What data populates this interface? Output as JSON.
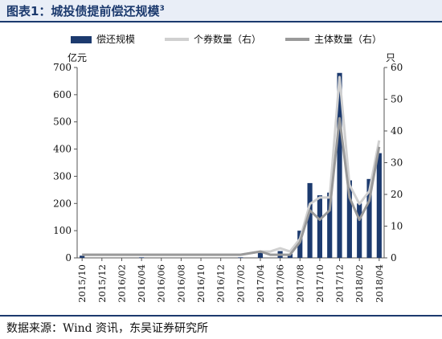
{
  "header": {
    "title": "图表1：城投债提前偿还规模",
    "title_superscript": "3"
  },
  "footer": {
    "source": "数据来源：Wind 资讯，东吴证券研究所"
  },
  "chart_data": {
    "type": "bar",
    "categories": [
      "2015/10",
      "2015/11",
      "2015/12",
      "2016/01",
      "2016/02",
      "2016/03",
      "2016/04",
      "2016/05",
      "2016/06",
      "2016/07",
      "2016/08",
      "2016/09",
      "2016/10",
      "2016/11",
      "2016/12",
      "2017/01",
      "2017/02",
      "2017/03",
      "2017/04",
      "2017/05",
      "2017/06",
      "2017/07",
      "2017/08",
      "2017/09",
      "2017/10",
      "2017/11",
      "2017/12",
      "2018/01",
      "2018/02",
      "2018/03",
      "2018/04"
    ],
    "tick_labels": [
      "2015/10",
      "2015/12",
      "2016/02",
      "2016/04",
      "2016/06",
      "2016/08",
      "2016/10",
      "2016/12",
      "2017/02",
      "2017/04",
      "2017/06",
      "2017/08",
      "2017/10",
      "2017/12",
      "2018/02",
      "2018/04"
    ],
    "left_axis": {
      "unit": "亿元",
      "ylim": [
        0,
        700
      ],
      "ticks": [
        0,
        100,
        200,
        300,
        400,
        500,
        600,
        700
      ]
    },
    "right_axis": {
      "unit": "只",
      "ylim": [
        0,
        60
      ],
      "ticks": [
        0,
        10,
        20,
        30,
        40,
        50,
        60
      ]
    },
    "legend_placement": "top",
    "grid": false,
    "series": [
      {
        "name": "偿还规模",
        "kind": "bar",
        "axis": "left",
        "color": "#1c3a6e",
        "values": [
          8,
          0,
          0,
          0,
          0,
          0,
          2,
          0,
          0,
          0,
          0,
          0,
          0,
          0,
          0,
          0,
          2,
          0,
          20,
          0,
          25,
          15,
          100,
          275,
          230,
          240,
          680,
          285,
          200,
          290,
          385
        ]
      },
      {
        "name": "个券数量（右）",
        "kind": "line",
        "axis": "right",
        "color": "#d0d0d0",
        "values": [
          1,
          1,
          1,
          1,
          1,
          1,
          1,
          1,
          1,
          1,
          1,
          1,
          1,
          1,
          1,
          1,
          1,
          1.5,
          2,
          2,
          3,
          2,
          6,
          17,
          19,
          19,
          57,
          23,
          17,
          21,
          37
        ]
      },
      {
        "name": "主体数量（右）",
        "kind": "line",
        "axis": "right",
        "color": "#9a9a9a",
        "values": [
          1,
          1,
          1,
          1,
          1,
          1,
          1,
          1,
          1,
          1,
          1,
          1,
          1,
          1,
          1,
          1,
          1,
          1.5,
          2,
          1,
          1,
          1,
          5,
          15,
          12,
          15,
          44,
          19,
          12,
          18,
          35
        ]
      }
    ]
  }
}
